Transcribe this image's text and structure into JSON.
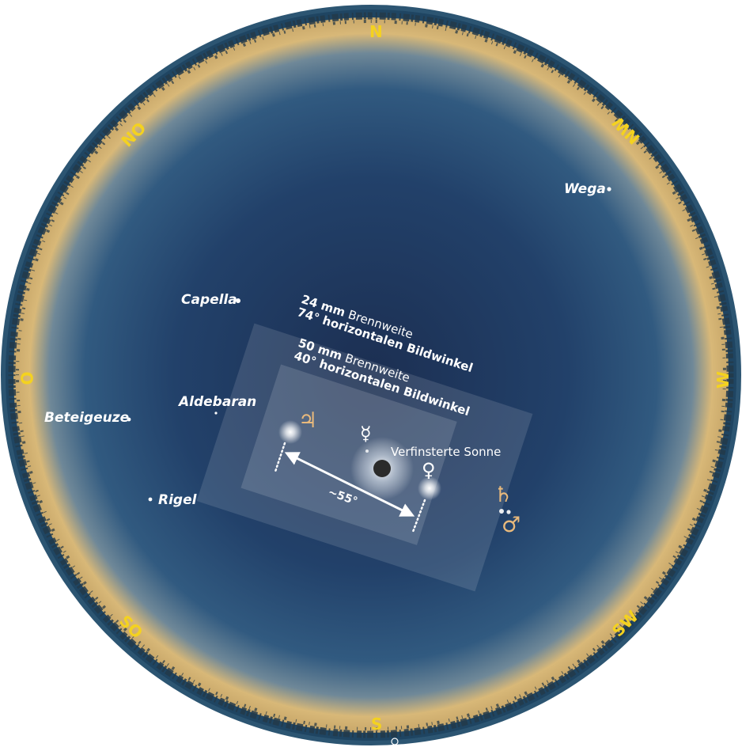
{
  "compass": {
    "n": "N",
    "ne": "NO",
    "e": "O",
    "se": "SO",
    "s": "S",
    "sw": "SW",
    "w": "W",
    "nw": "NW"
  },
  "stars": {
    "wega": "Wega",
    "capella": "Capella",
    "aldebaran": "Aldebaran",
    "beteigeuze": "Beteigeuze",
    "rigel": "Rigel"
  },
  "fov_24": {
    "focal": "24 mm",
    "focal_word": "Brennweite",
    "angle": "74° horizontalen Bildwinkel"
  },
  "fov_50": {
    "focal": "50 mm",
    "focal_word": "Brennweite",
    "angle": "40° horizontalen Bildwinkel"
  },
  "sun_label": "Verfinsterte Sonne",
  "distance_label": "~55°",
  "planets": {
    "jupiter": "♃",
    "mercury": "☿",
    "venus": "♀",
    "saturn": "♄",
    "mars": "♂"
  },
  "colors": {
    "sky_center": "#1b2f52",
    "sky_edge": "#2f5477",
    "horizon_glow": "#d8b878",
    "compass": "#f4d21f",
    "planet_tan": "#e8b97c"
  }
}
